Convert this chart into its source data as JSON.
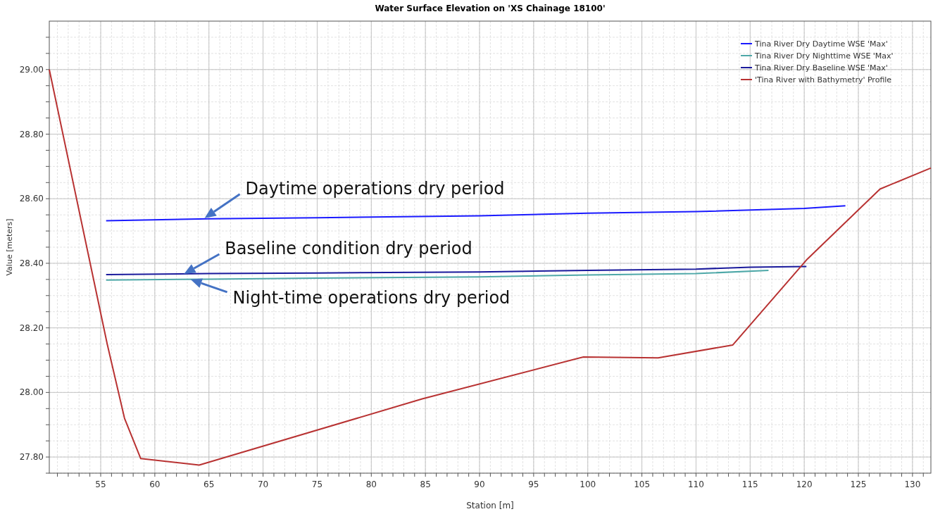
{
  "chart_data": {
    "type": "line",
    "title": "Water Surface Elevation on 'XS Chainage 18100'",
    "xlabel": "Station [m]",
    "ylabel": "Value [meters]",
    "xlim": [
      50.25,
      131.7
    ],
    "ylim": [
      27.75,
      29.15
    ],
    "xticks": [
      55,
      60,
      65,
      70,
      75,
      80,
      85,
      90,
      95,
      100,
      105,
      110,
      115,
      120,
      125,
      130
    ],
    "yticks": [
      {
        "value": 27.8,
        "label": "27.80"
      },
      {
        "value": 28,
        "label": "28.00"
      },
      {
        "value": 28.2,
        "label": "28.20"
      },
      {
        "value": 28.4,
        "label": "28.40"
      },
      {
        "value": 28.6,
        "label": "28.60"
      },
      {
        "value": 28.8,
        "label": "28.80"
      },
      {
        "value": 29,
        "label": "29.00"
      }
    ],
    "grid": true,
    "legend": "top right",
    "marker": "none",
    "line_style": "solid",
    "series": [
      {
        "name": "Tina River Dry Daytime WSE 'Max'",
        "color": "#1a1aff",
        "x": [
          55.5,
          65,
          75,
          90,
          100,
          110,
          120,
          123.8
        ],
        "values": [
          28.532,
          28.538,
          28.541,
          28.547,
          28.555,
          28.56,
          28.57,
          28.578
        ]
      },
      {
        "name": "Tina River Dry Nighttime WSE 'Max'",
        "color": "#4ea8a8",
        "x": [
          55.5,
          65,
          75,
          90,
          100,
          110,
          116.7
        ],
        "values": [
          28.348,
          28.351,
          28.354,
          28.358,
          28.364,
          28.368,
          28.378
        ]
      },
      {
        "name": "Tina River Dry Baseline WSE 'Max'",
        "color": "#1a1a9c",
        "x": [
          55.5,
          65,
          75,
          90,
          100,
          110,
          115,
          120.2
        ],
        "values": [
          28.365,
          28.368,
          28.37,
          28.373,
          28.378,
          28.382,
          28.388,
          28.39
        ]
      },
      {
        "name": "'Tina River with Bathymetry' Profile",
        "color": "#b83232",
        "x": [
          50.25,
          55.6,
          57.2,
          58.7,
          64.1,
          84.7,
          99.6,
          106.5,
          113.4,
          120.2,
          127,
          131.7
        ],
        "values": [
          29,
          28.15,
          27.92,
          27.795,
          27.775,
          27.98,
          28.11,
          28.107,
          28.147,
          28.41,
          28.63,
          28.695
        ]
      }
    ],
    "annotations": [
      {
        "text": "Daytime operations dry period",
        "x": 64.6,
        "y": 28.54
      },
      {
        "text": "Baseline condition dry period",
        "x": 62.7,
        "y": 28.367
      },
      {
        "text": "Night-time operations dry period",
        "x": 63.3,
        "y": 28.35
      }
    ]
  }
}
